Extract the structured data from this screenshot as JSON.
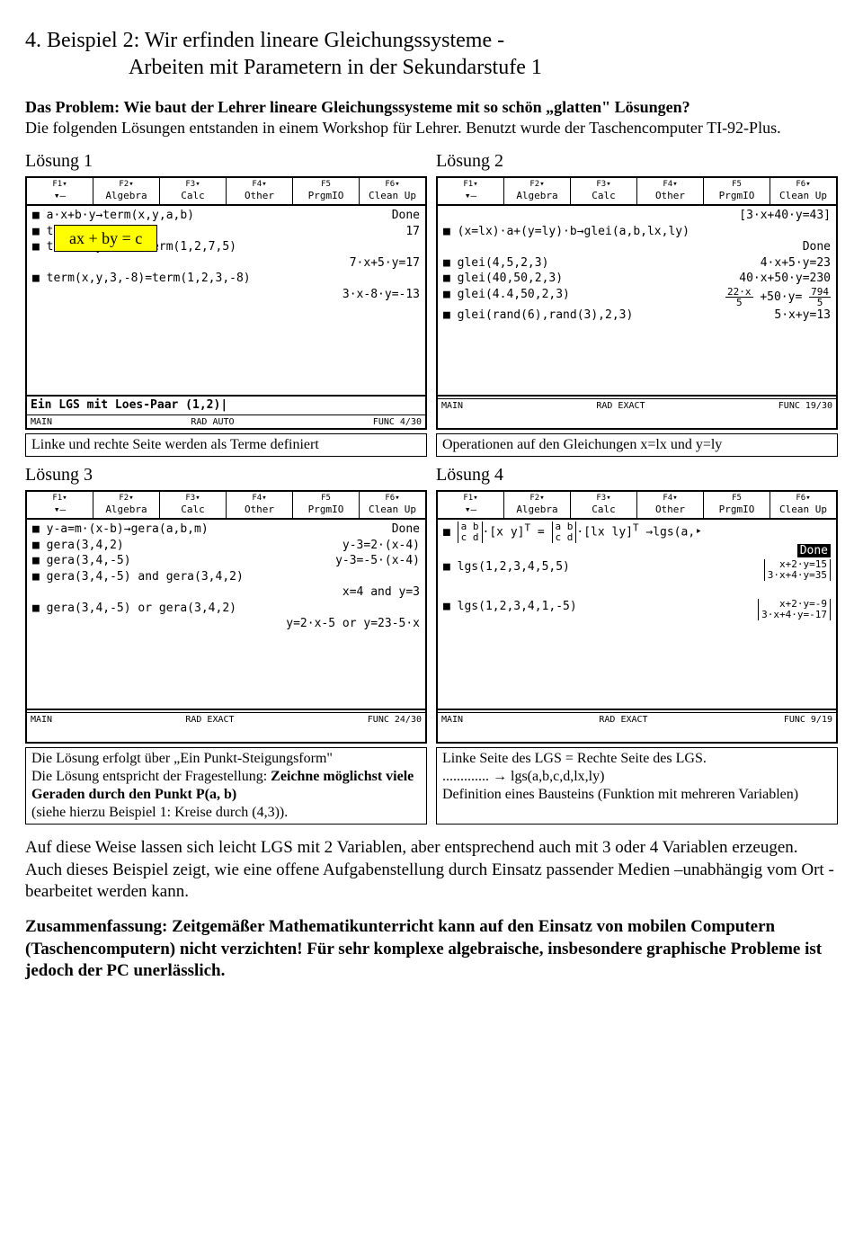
{
  "heading_line1": "4. Beispiel 2: Wir erfinden lineare Gleichungssysteme -",
  "heading_line2": "Arbeiten mit Parametern in der Sekundarstufe 1",
  "intro_bold1": "Das Problem: Wie baut der Lehrer lineare Gleichungssysteme mit so schön „glatten\" Lösungen?",
  "intro_text": "Die folgenden Lösungen entstanden in einem Workshop für Lehrer. Benutzt wurde der Taschencomputer TI-92-Plus.",
  "loes1_label": "Lösung 1",
  "loes2_label": "Lösung 2",
  "loes3_label": "Lösung 3",
  "loes4_label": "Lösung 4",
  "hilite_text": "ax + by = c",
  "menu_tabs": [
    {
      "f": "F1▾",
      "l": "▾—"
    },
    {
      "f": "F2▾",
      "l": "Algebra"
    },
    {
      "f": "F3▾",
      "l": "Calc"
    },
    {
      "f": "F4▾",
      "l": "Other"
    },
    {
      "f": "F5",
      "l": "PrgmIO"
    },
    {
      "f": "F6▾",
      "l": "Clean Up"
    }
  ],
  "calc1": {
    "lines": [
      {
        "l": "",
        "r": ""
      },
      {
        "l": "",
        "r": ""
      },
      {
        "l": "■ a·x+b·y→term(x,y,a,b)",
        "r": "Done"
      },
      {
        "l": "■ term(1,2,7,5)",
        "r": "17"
      },
      {
        "l": "■ term(x,y,7,5)=term(1,2,7,5)",
        "r": ""
      },
      {
        "l": "",
        "r": "7·x+5·y=17"
      },
      {
        "l": "■ term(x,y,3,-8)=term(1,2,3,-8)",
        "r": ""
      },
      {
        "l": "",
        "r": "3·x-8·y=-13"
      }
    ],
    "entry": "Ein LGS mit Loes-Paar (1,2)|",
    "status": {
      "l": "MAIN",
      "m": "RAD AUTO",
      "r": "FUNC 4/30"
    }
  },
  "calc2": {
    "lines": [
      {
        "l": "",
        "r": "[3·x+40·y=43]"
      },
      {
        "l": "■ (x=lx)·a+(y=ly)·b→glei(a,b,lx,ly)",
        "r": ""
      },
      {
        "l": "",
        "r": "Done"
      },
      {
        "l": "■ glei(4,5,2,3)",
        "r": "4·x+5·y=23"
      },
      {
        "l": "■ glei(40,50,2,3)",
        "r": "40·x+50·y=230"
      },
      {
        "l": "■ glei(4.4,50,2,3)",
        "r": "frac22x5 +50·y= frac7945"
      },
      {
        "l": "■ glei(rand(6),rand(3),2,3)",
        "r": "5·x+y=13"
      }
    ],
    "entry": "",
    "status": {
      "l": "MAIN",
      "m": "RAD EXACT",
      "r": "FUNC 19/30"
    }
  },
  "calc3": {
    "lines": [
      {
        "l": "■ y-a=m·(x-b)→gera(a,b,m)",
        "r": "Done"
      },
      {
        "l": "■ gera(3,4,2)",
        "r": "y-3=2·(x-4)"
      },
      {
        "l": "■ gera(3,4,-5)",
        "r": "y-3=-5·(x-4)"
      },
      {
        "l": "■ gera(3,4,-5) and gera(3,4,2)",
        "r": ""
      },
      {
        "l": "",
        "r": "x=4 and y=3"
      },
      {
        "l": "■ gera(3,4,-5) or gera(3,4,2)",
        "r": ""
      },
      {
        "l": "",
        "r": "y=2·x-5 or y=23-5·x"
      }
    ],
    "entry": "",
    "status": {
      "l": "MAIN",
      "m": "RAD EXACT",
      "r": "FUNC 24/30"
    }
  },
  "calc4": {
    "entry": "",
    "status": {
      "l": "MAIN",
      "m": "RAD EXACT",
      "r": "FUNC 9/19"
    }
  },
  "caption1": "Linke und rechte Seite werden als Terme definiert",
  "caption2": "Operationen auf den Gleichungen x=lx und y=ly",
  "caption3_l1": "Die Lösung erfolgt über „Ein Punkt-Steigungsform\"",
  "caption3_l2a": "Die Lösung entspricht der Fragestellung: ",
  "caption3_l2b": "Zeichne möglichst viele Geraden durch den Punkt P(a, b)",
  "caption3_l3": "(siehe hierzu Beispiel 1: Kreise durch (4,3)).",
  "caption4_l1": "Linke Seite des LGS = Rechte Seite des LGS.",
  "caption4_l2": "............. → lgs(a,b,c,d,lx,ly)",
  "caption4_l3": "Definition eines Bausteins (Funktion mit mehreren Variablen)",
  "para_text": "Auf  diese Weise lassen sich leicht LGS mit 2 Variablen, aber entsprechend auch mit 3 oder 4 Variablen erzeugen. Auch dieses Beispiel zeigt, wie eine offene Aufgabenstellung durch Einsatz passender Medien –unabhängig vom Ort - bearbeitet werden kann.",
  "summary_text": "Zusammenfassung: Zeitgemäßer Mathematikunterricht kann auf den Einsatz von mobilen Computern (Taschencomputern) nicht verzichten! Für sehr komplexe  algebraische, insbesondere graphische Probleme ist jedoch der PC unerlässlich."
}
